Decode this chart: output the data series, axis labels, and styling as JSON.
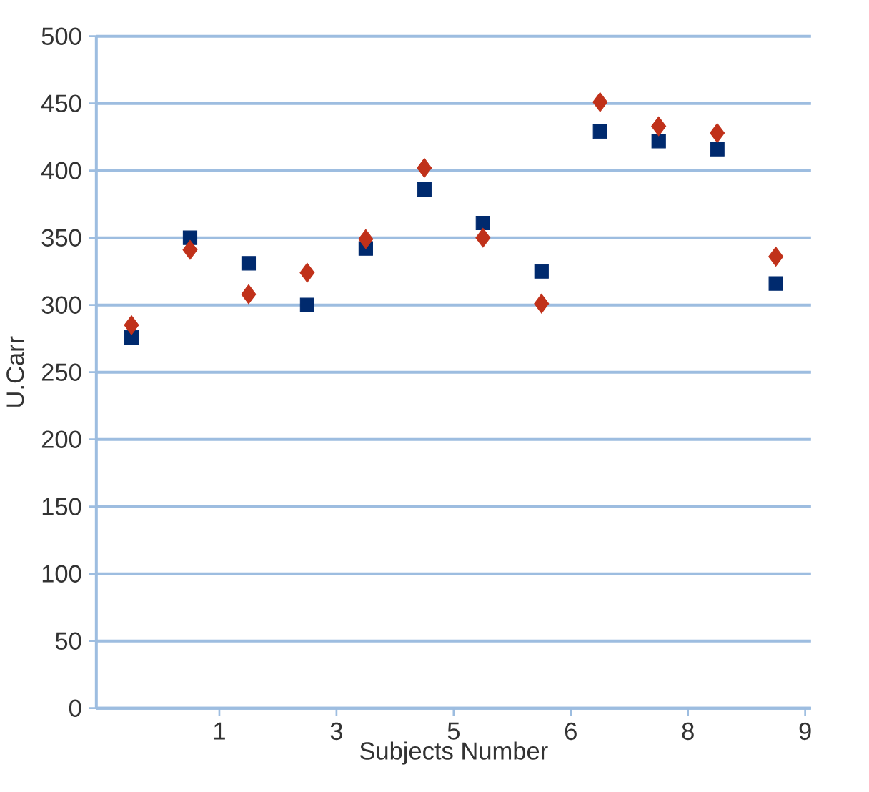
{
  "chart_data": {
    "type": "scatter",
    "xlabel": "Subjects Number",
    "ylabel": "U.Carr",
    "categories": [
      null,
      null,
      null,
      "1",
      null,
      null,
      null,
      "3",
      null,
      null,
      null,
      "5",
      null,
      null,
      null,
      "6",
      null,
      null,
      null,
      "8",
      null,
      null,
      null,
      "9"
    ],
    "series": [
      {
        "color": "#002a6e",
        "marker": "square",
        "values": [
          276,
          null,
          350,
          null,
          331,
          null,
          300,
          null,
          342,
          null,
          386,
          null,
          361,
          null,
          325,
          null,
          429,
          null,
          422,
          null,
          416,
          null,
          316,
          null
        ]
      },
      {
        "color": "#c0311a",
        "marker": "diamond",
        "values": [
          285,
          null,
          341,
          null,
          308,
          null,
          324,
          null,
          349,
          null,
          402,
          null,
          350,
          null,
          301,
          null,
          451,
          null,
          433,
          null,
          428,
          null,
          336,
          null
        ]
      }
    ],
    "ylim": [
      0,
      500
    ],
    "yticks": [
      0,
      50,
      100,
      150,
      200,
      250,
      300,
      350,
      400,
      450,
      500
    ],
    "grid": "y"
  }
}
